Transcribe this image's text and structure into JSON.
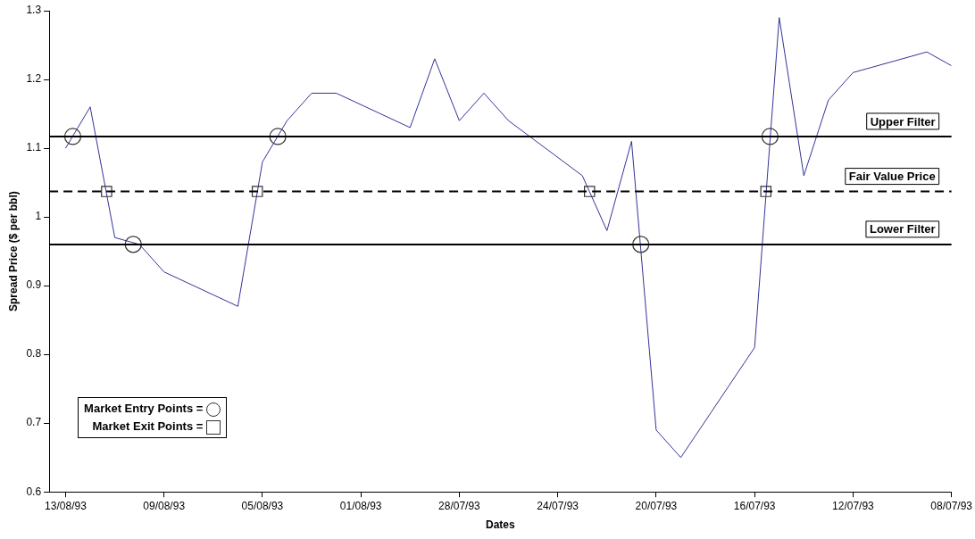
{
  "chart_data": {
    "type": "line",
    "xlabel": "Dates",
    "ylabel": "Spread Price ($ per bbl)",
    "xlim": [
      "1993-08-13T16:00",
      "1993-07-08"
    ],
    "xticks": [
      {
        "value": "1993-08-13",
        "label": "13/08/93"
      },
      {
        "value": "1993-08-09",
        "label": "09/08/93"
      },
      {
        "value": "1993-08-05",
        "label": "05/08/93"
      },
      {
        "value": "1993-08-01",
        "label": "01/08/93"
      },
      {
        "value": "1993-07-28",
        "label": "28/07/93"
      },
      {
        "value": "1993-07-24",
        "label": "24/07/93"
      },
      {
        "value": "1993-07-20",
        "label": "20/07/93"
      },
      {
        "value": "1993-07-16",
        "label": "16/07/93"
      },
      {
        "value": "1993-07-12",
        "label": "12/07/93"
      },
      {
        "value": "1993-07-08",
        "label": "08/07/93"
      }
    ],
    "ylim": [
      0.6,
      1.3
    ],
    "yticks": [
      0.6,
      0.7,
      0.8,
      0.9,
      1,
      1.1,
      1.2,
      1.3
    ],
    "grid": false,
    "legend": "bottom left",
    "series": [
      {
        "color": "#333399",
        "marker": "none",
        "line_style": "solid",
        "x": [
          "1993-08-13",
          "1993-08-12",
          "1993-08-11",
          "1993-08-10",
          "1993-08-09",
          "1993-08-06",
          "1993-08-05",
          "1993-08-04",
          "1993-08-03",
          "1993-08-02",
          "1993-07-30",
          "1993-07-29",
          "1993-07-28",
          "1993-07-27",
          "1993-07-26",
          "1993-07-23",
          "1993-07-22",
          "1993-07-21",
          "1993-07-20",
          "1993-07-19",
          "1993-07-16",
          "1993-07-15",
          "1993-07-14",
          "1993-07-13",
          "1993-07-12",
          "1993-07-09",
          "1993-07-08"
        ],
        "values": [
          1.1,
          1.16,
          0.97,
          0.96,
          0.92,
          0.87,
          1.08,
          1.14,
          1.18,
          1.18,
          1.13,
          1.23,
          1.14,
          1.18,
          1.14,
          1.06,
          0.98,
          1.11,
          0.69,
          0.65,
          0.81,
          1.29,
          1.06,
          1.17,
          1.21,
          1.24,
          1.22
        ]
      },
      {
        "type": "scatter",
        "name": "Market Entry Points =",
        "color": "#333333",
        "marker": "circle",
        "x": [
          "1993-08-12T17:00",
          "1993-08-10T06:00",
          "1993-08-04T09:00",
          "1993-07-20T15:00",
          "1993-07-15T09:00"
        ],
        "values": [
          1.117,
          0.96,
          1.117,
          0.96,
          1.117
        ]
      },
      {
        "type": "scatter",
        "name": "Market Exit Points =",
        "color": "#333333",
        "marker": "square",
        "x": [
          "1993-08-11T08:00",
          "1993-08-05T05:00",
          "1993-07-22T17:00",
          "1993-07-15T13:00"
        ],
        "values": [
          1.037,
          1.037,
          1.037,
          1.037
        ]
      }
    ],
    "ref_lines": [
      {
        "axis": "y",
        "value": 1.117,
        "label": "Upper Filter",
        "color": "#000000",
        "line_style": "solid"
      },
      {
        "axis": "y",
        "value": 1.037,
        "label": "Fair Value Price",
        "color": "#000000",
        "line_style": "dashed"
      },
      {
        "axis": "y",
        "value": 0.96,
        "label": "Lower Filter",
        "color": "#000000",
        "line_style": "solid"
      }
    ]
  }
}
